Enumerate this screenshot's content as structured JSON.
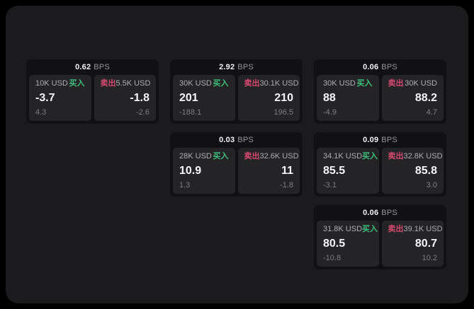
{
  "labels": {
    "bps_suffix": "BPS",
    "buy": "买入",
    "sell": "卖出"
  },
  "colors": {
    "buy_green": "#3fbe7a",
    "sell_red": "#d64a6f",
    "surface": "#1b1b1d",
    "card": "#111113",
    "panel": "#242427",
    "background": "#000000"
  },
  "cards": [
    {
      "col": 1,
      "row": 1,
      "bps": "0.62",
      "buy": {
        "amount": "10K USD",
        "value": "-3.7",
        "sub": "4.3"
      },
      "sell": {
        "amount": "5.5K USD",
        "value": "-1.8",
        "sub": "-2.6"
      }
    },
    {
      "col": 2,
      "row": 1,
      "bps": "2.92",
      "buy": {
        "amount": "30K USD",
        "value": "201",
        "sub": "-188.1"
      },
      "sell": {
        "amount": "30.1K USD",
        "value": "210",
        "sub": "196.5"
      }
    },
    {
      "col": 3,
      "row": 1,
      "bps": "0.06",
      "buy": {
        "amount": "30K USD",
        "value": "88",
        "sub": "-4.9"
      },
      "sell": {
        "amount": "30K USD",
        "value": "88.2",
        "sub": "4.7"
      }
    },
    {
      "col": 2,
      "row": 2,
      "bps": "0.03",
      "buy": {
        "amount": "28K USD",
        "value": "10.9",
        "sub": "1.3"
      },
      "sell": {
        "amount": "32.6K USD",
        "value": "11",
        "sub": "-1.8"
      }
    },
    {
      "col": 3,
      "row": 2,
      "bps": "0.09",
      "buy": {
        "amount": "34.1K USD",
        "value": "85.5",
        "sub": "-3.1"
      },
      "sell": {
        "amount": "32.8K USD",
        "value": "85.8",
        "sub": "3.0"
      }
    },
    {
      "col": 3,
      "row": 3,
      "bps": "0.06",
      "buy": {
        "amount": "31.8K USD",
        "value": "80.5",
        "sub": "-10.8"
      },
      "sell": {
        "amount": "39.1K USD",
        "value": "80.7",
        "sub": "10.2"
      }
    }
  ]
}
